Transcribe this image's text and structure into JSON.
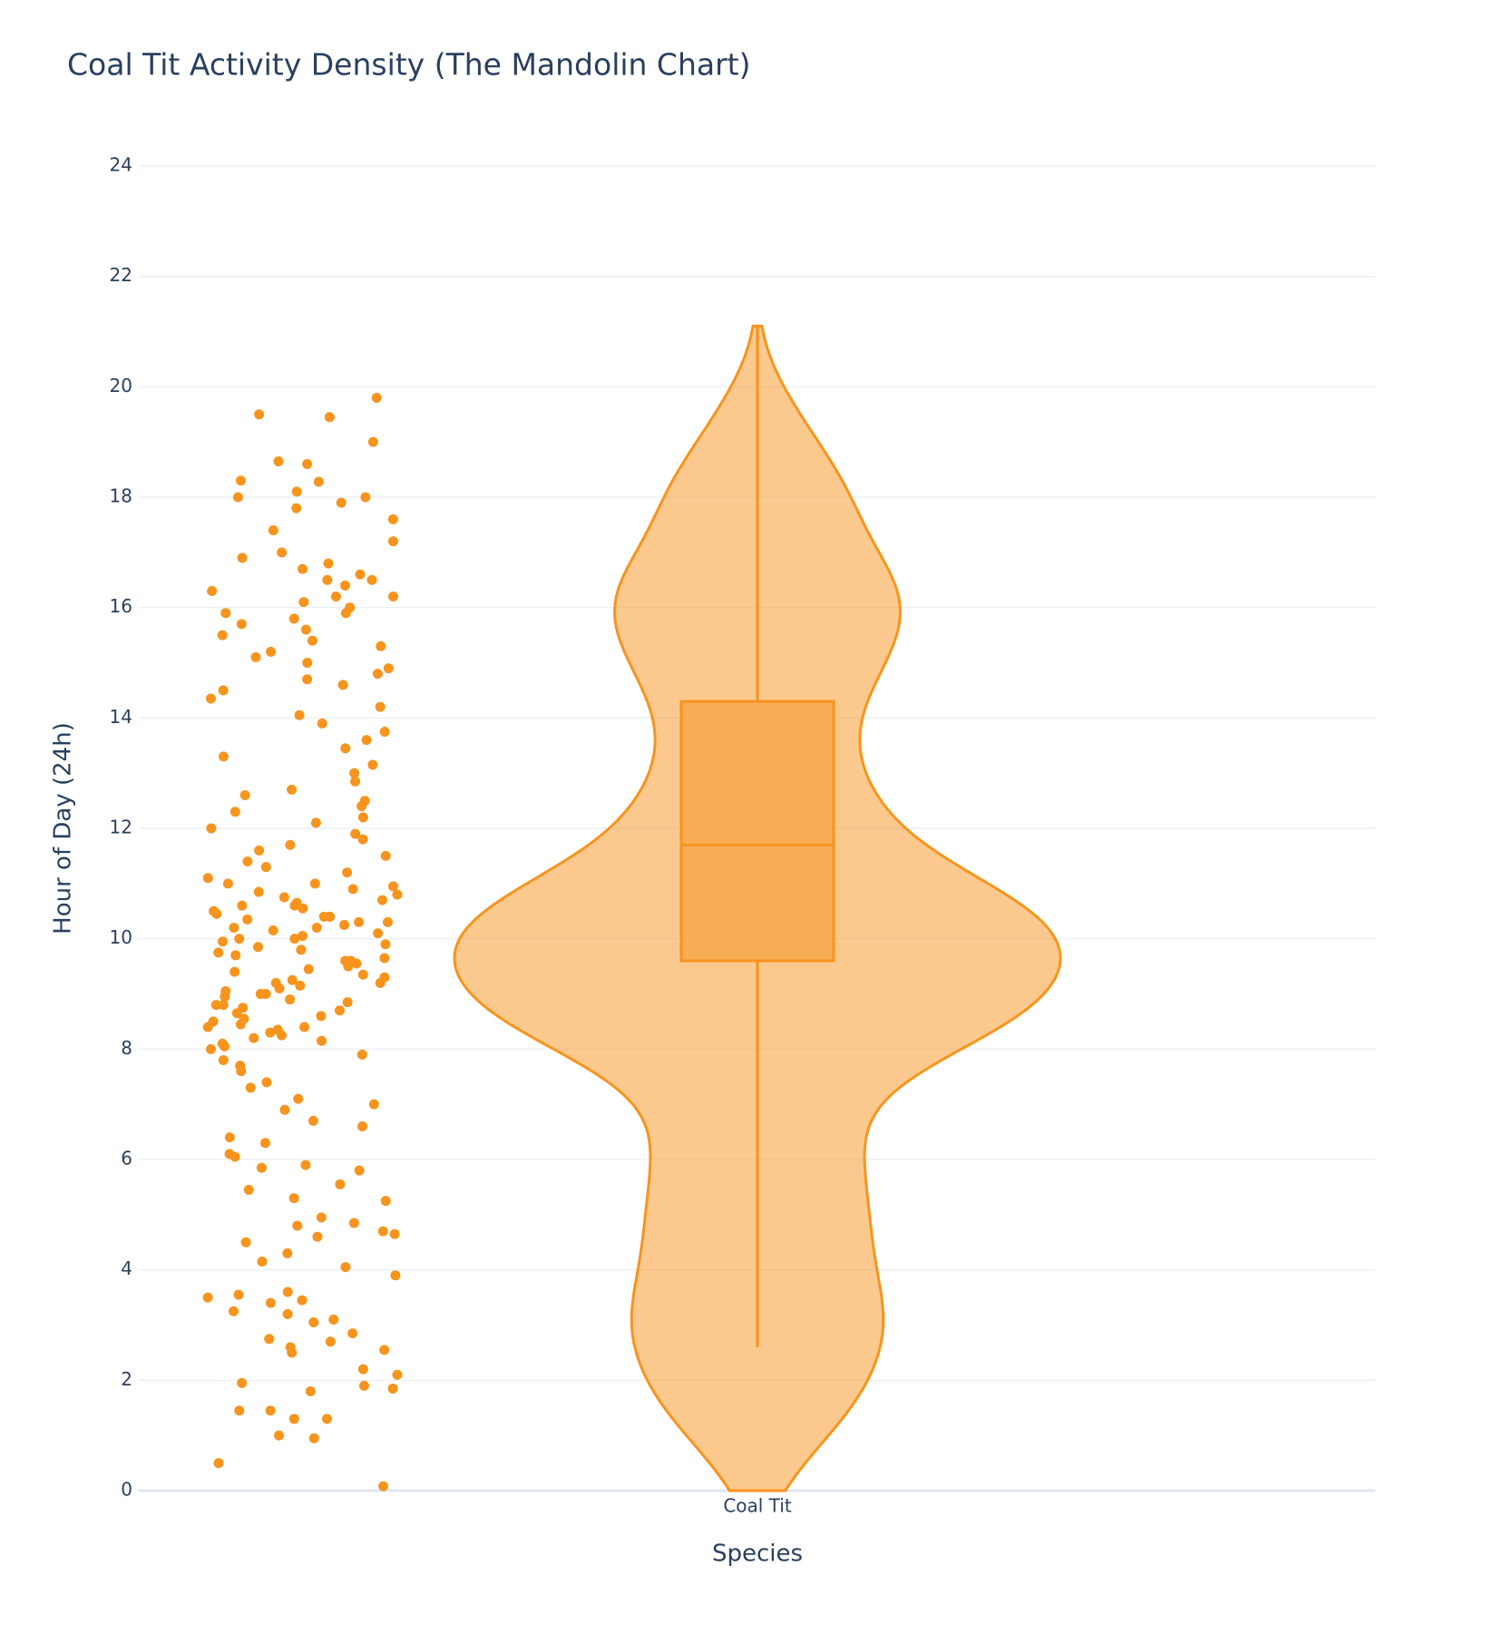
{
  "chart_data": {
    "type": "violin",
    "title": "Coal Tit Activity Density (The Mandolin Chart)",
    "x_label": "Species",
    "y_label": "Hour of Day (24h)",
    "categories": [
      "Coal Tit"
    ],
    "color": "#f7941d",
    "ylim": [
      0,
      24
    ],
    "yticks": [
      0,
      2,
      4,
      6,
      8,
      10,
      12,
      14,
      16,
      18,
      20,
      22,
      24
    ],
    "grid": true,
    "span": [
      0,
      21.1
    ],
    "box": {
      "lowerfence": 2.6,
      "q1": 9.6,
      "median": 11.7,
      "q3": 14.3,
      "upperfence": 21.1
    },
    "points": [
      0.08,
      0.5,
      0.95,
      1.0,
      1.3,
      1.3,
      1.45,
      1.45,
      1.8,
      1.85,
      1.9,
      1.95,
      2.1,
      2.2,
      2.5,
      2.55,
      2.6,
      2.7,
      2.75,
      2.85,
      3.05,
      3.1,
      3.2,
      3.25,
      3.4,
      3.45,
      3.5,
      3.55,
      3.6,
      3.9,
      4.05,
      4.15,
      4.3,
      4.5,
      4.6,
      4.65,
      4.7,
      4.8,
      4.85,
      4.95,
      5.25,
      5.3,
      5.45,
      5.55,
      5.8,
      5.85,
      5.9,
      6.05,
      6.1,
      6.3,
      6.4,
      6.6,
      6.7,
      6.9,
      7.0,
      7.1,
      7.3,
      7.4,
      7.6,
      7.7,
      7.8,
      7.9,
      8.0,
      8.05,
      8.1,
      8.15,
      8.2,
      8.25,
      8.3,
      8.35,
      8.4,
      8.45,
      8.5,
      8.55,
      8.6,
      8.65,
      8.7,
      8.75,
      8.8,
      8.85,
      8.9,
      8.95,
      9.0,
      9.05,
      9.1,
      9.15,
      9.2,
      9.25,
      9.3,
      9.35,
      9.4,
      9.45,
      9.5,
      9.55,
      9.6,
      9.65,
      9.7,
      9.75,
      9.8,
      9.85,
      9.9,
      9.95,
      10.0,
      10.05,
      10.1,
      10.15,
      10.2,
      10.25,
      10.3,
      10.35,
      10.4,
      10.45,
      10.5,
      10.55,
      10.6,
      10.65,
      10.7,
      10.75,
      10.8,
      10.85,
      10.9,
      10.95,
      11.0,
      11.1,
      11.2,
      11.3,
      11.4,
      11.5,
      11.6,
      11.7,
      11.8,
      11.9,
      12.0,
      12.1,
      12.2,
      12.3,
      12.4,
      12.5,
      12.6,
      12.7,
      12.85,
      13.0,
      13.15,
      13.3,
      13.45,
      13.6,
      13.75,
      13.9,
      14.05,
      14.2,
      14.35,
      14.5,
      14.6,
      14.7,
      14.8,
      14.9,
      15.0,
      15.1,
      15.2,
      15.3,
      15.4,
      15.5,
      15.6,
      15.7,
      15.8,
      15.9,
      16.0,
      16.1,
      16.2,
      16.3,
      16.4,
      16.5,
      16.6,
      16.7,
      16.8,
      16.9,
      17.0,
      17.2,
      17.4,
      17.6,
      17.8,
      17.9,
      18.0,
      8.4,
      8.8,
      9.2,
      9.6,
      10.0,
      10.2,
      10.4,
      10.6,
      11.0,
      15.9,
      16.2,
      16.5,
      9.0,
      10.3,
      18.0,
      18.1,
      18.28,
      18.3,
      18.6,
      18.65,
      19.0,
      19.45,
      19.5,
      19.8
    ]
  }
}
